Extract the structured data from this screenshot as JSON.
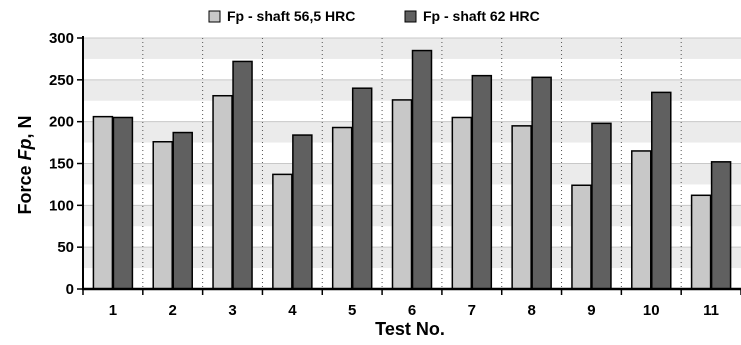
{
  "chart_data": {
    "type": "bar",
    "xlabel": "Test No.",
    "ylabel_prefix": "Force ",
    "ylabel_symbol": "Fp",
    "ylabel_suffix": ", N",
    "ylim": [
      0,
      300
    ],
    "yticks": [
      0,
      50,
      100,
      150,
      200,
      250,
      300
    ],
    "categories": [
      "1",
      "2",
      "3",
      "4",
      "5",
      "6",
      "7",
      "8",
      "9",
      "10",
      "11"
    ],
    "series": [
      {
        "name": "Fp - shaft 56,5 HRC",
        "color": "#c8c8c8",
        "values": [
          206,
          176,
          231,
          137,
          193,
          226,
          205,
          195,
          124,
          165,
          112
        ]
      },
      {
        "name": "Fp - shaft 62 HRC",
        "color": "#606060",
        "values": [
          205,
          187,
          272,
          184,
          240,
          285,
          255,
          253,
          198,
          235,
          152
        ]
      }
    ],
    "legend_position": "top",
    "grid": "horizontal bands and dotted vertical separators"
  }
}
